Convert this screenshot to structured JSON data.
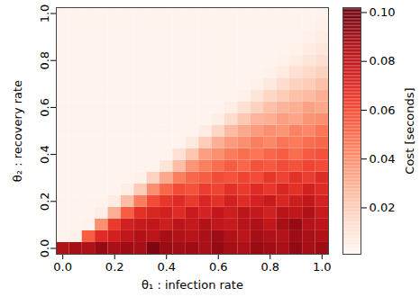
{
  "chart_data": {
    "type": "heatmap",
    "x_label": "θ₁ : infection rate",
    "y_label": "θ₂ : recovery rate",
    "x": [
      0,
      0.05,
      0.1,
      0.15,
      0.2,
      0.25,
      0.3,
      0.35,
      0.4,
      0.45,
      0.5,
      0.55,
      0.6,
      0.65,
      0.7,
      0.75,
      0.8,
      0.85,
      0.9,
      0.95,
      1.0
    ],
    "y": [
      0,
      0.05,
      0.1,
      0.15,
      0.2,
      0.25,
      0.3,
      0.35,
      0.4,
      0.45,
      0.5,
      0.55,
      0.6,
      0.65,
      0.7,
      0.75,
      0.8,
      0.85,
      0.9,
      0.95,
      1.0
    ],
    "values": [
      [
        0.085,
        0.088,
        0.086,
        0.092,
        0.087,
        0.09,
        0.088,
        0.097,
        0.091,
        0.089,
        0.09,
        0.087,
        0.092,
        0.088,
        0.086,
        0.091,
        0.089,
        0.087,
        0.093,
        0.088,
        0.09
      ],
      [
        0.002,
        0.004,
        0.055,
        0.07,
        0.075,
        0.08,
        0.085,
        0.082,
        0.088,
        0.085,
        0.083,
        0.087,
        0.09,
        0.085,
        0.082,
        0.088,
        0.086,
        0.084,
        0.09,
        0.087,
        0.085
      ],
      [
        0.002,
        0.002,
        0.003,
        0.04,
        0.065,
        0.075,
        0.078,
        0.08,
        0.076,
        0.082,
        0.079,
        0.085,
        0.08,
        0.078,
        0.083,
        0.086,
        0.08,
        0.088,
        0.092,
        0.084,
        0.082
      ],
      [
        0.002,
        0.002,
        0.002,
        0.005,
        0.03,
        0.055,
        0.068,
        0.072,
        0.075,
        0.07,
        0.078,
        0.074,
        0.08,
        0.076,
        0.082,
        0.079,
        0.075,
        0.083,
        0.08,
        0.086,
        0.078
      ],
      [
        0.002,
        0.002,
        0.002,
        0.002,
        0.006,
        0.025,
        0.045,
        0.06,
        0.066,
        0.07,
        0.065,
        0.072,
        0.068,
        0.075,
        0.07,
        0.074,
        0.078,
        0.072,
        0.076,
        0.08,
        0.074
      ],
      [
        0.002,
        0.002,
        0.002,
        0.002,
        0.002,
        0.005,
        0.02,
        0.04,
        0.052,
        0.06,
        0.058,
        0.064,
        0.062,
        0.068,
        0.065,
        0.07,
        0.066,
        0.072,
        0.068,
        0.075,
        0.07
      ],
      [
        0.002,
        0.002,
        0.002,
        0.002,
        0.002,
        0.002,
        0.004,
        0.018,
        0.032,
        0.045,
        0.052,
        0.055,
        0.06,
        0.058,
        0.062,
        0.06,
        0.066,
        0.063,
        0.068,
        0.064,
        0.07
      ],
      [
        0.002,
        0.002,
        0.002,
        0.002,
        0.002,
        0.002,
        0.002,
        0.002,
        0.01,
        0.025,
        0.038,
        0.045,
        0.05,
        0.055,
        0.052,
        0.058,
        0.056,
        0.06,
        0.058,
        0.062,
        0.06
      ],
      [
        0.002,
        0.002,
        0.002,
        0.002,
        0.002,
        0.002,
        0.002,
        0.002,
        0.002,
        0.012,
        0.022,
        0.035,
        0.04,
        0.046,
        0.05,
        0.048,
        0.052,
        0.055,
        0.05,
        0.056,
        0.058
      ],
      [
        0.002,
        0.002,
        0.002,
        0.002,
        0.002,
        0.002,
        0.002,
        0.002,
        0.002,
        0.002,
        0.008,
        0.02,
        0.03,
        0.036,
        0.04,
        0.045,
        0.042,
        0.048,
        0.046,
        0.05,
        0.052
      ],
      [
        0.002,
        0.002,
        0.002,
        0.002,
        0.002,
        0.002,
        0.002,
        0.002,
        0.002,
        0.002,
        0.002,
        0.006,
        0.016,
        0.026,
        0.032,
        0.036,
        0.04,
        0.038,
        0.044,
        0.042,
        0.048
      ],
      [
        0.002,
        0.002,
        0.002,
        0.002,
        0.002,
        0.002,
        0.002,
        0.002,
        0.002,
        0.002,
        0.002,
        0.002,
        0.005,
        0.014,
        0.022,
        0.028,
        0.03,
        0.035,
        0.033,
        0.038,
        0.04
      ],
      [
        0.002,
        0.002,
        0.002,
        0.002,
        0.002,
        0.002,
        0.002,
        0.002,
        0.002,
        0.002,
        0.002,
        0.002,
        0.002,
        0.005,
        0.012,
        0.018,
        0.024,
        0.028,
        0.03,
        0.034,
        0.032
      ],
      [
        0.002,
        0.002,
        0.002,
        0.002,
        0.002,
        0.002,
        0.002,
        0.002,
        0.002,
        0.002,
        0.002,
        0.002,
        0.002,
        0.002,
        0.004,
        0.01,
        0.016,
        0.02,
        0.024,
        0.026,
        0.03
      ],
      [
        0.002,
        0.002,
        0.002,
        0.002,
        0.002,
        0.002,
        0.002,
        0.002,
        0.002,
        0.002,
        0.002,
        0.002,
        0.002,
        0.002,
        0.002,
        0.004,
        0.008,
        0.014,
        0.018,
        0.02,
        0.024
      ],
      [
        0.002,
        0.002,
        0.002,
        0.002,
        0.002,
        0.002,
        0.002,
        0.002,
        0.002,
        0.002,
        0.002,
        0.002,
        0.002,
        0.002,
        0.002,
        0.002,
        0.003,
        0.007,
        0.012,
        0.015,
        0.018
      ],
      [
        0.002,
        0.002,
        0.002,
        0.002,
        0.002,
        0.002,
        0.002,
        0.002,
        0.002,
        0.002,
        0.002,
        0.002,
        0.002,
        0.002,
        0.002,
        0.002,
        0.002,
        0.003,
        0.006,
        0.01,
        0.013
      ],
      [
        0.002,
        0.002,
        0.002,
        0.002,
        0.002,
        0.002,
        0.002,
        0.002,
        0.002,
        0.002,
        0.002,
        0.002,
        0.002,
        0.002,
        0.002,
        0.002,
        0.002,
        0.002,
        0.003,
        0.006,
        0.009
      ],
      [
        0.002,
        0.002,
        0.002,
        0.002,
        0.002,
        0.002,
        0.002,
        0.002,
        0.002,
        0.002,
        0.002,
        0.002,
        0.002,
        0.002,
        0.002,
        0.002,
        0.002,
        0.002,
        0.002,
        0.004,
        0.006
      ],
      [
        0.002,
        0.002,
        0.002,
        0.002,
        0.002,
        0.002,
        0.002,
        0.002,
        0.002,
        0.002,
        0.002,
        0.002,
        0.002,
        0.002,
        0.002,
        0.002,
        0.002,
        0.002,
        0.002,
        0.002,
        0.004
      ],
      [
        0.002,
        0.002,
        0.002,
        0.002,
        0.002,
        0.002,
        0.002,
        0.002,
        0.002,
        0.002,
        0.002,
        0.002,
        0.002,
        0.002,
        0.002,
        0.002,
        0.002,
        0.002,
        0.002,
        0.002,
        0.002
      ]
    ],
    "xlim": [
      -0.025,
      1.025
    ],
    "ylim": [
      -0.025,
      1.025
    ],
    "xticks": [
      {
        "value": 0,
        "label": "0.0"
      },
      0.2,
      0.4,
      0.6,
      0.8,
      {
        "value": 1,
        "label": "1.0"
      }
    ],
    "yticks": [
      {
        "value": 0,
        "label": "0.0"
      },
      0.2,
      0.4,
      0.6,
      0.8,
      {
        "value": 1,
        "label": "1.0"
      }
    ],
    "color": "Reds",
    "colorbar": {
      "label": "Cost [seconds]",
      "range": [
        0.001,
        0.102
      ],
      "ticks": [
        0.02,
        0.04,
        0.06,
        0.08,
        {
          "value": 0.1,
          "label": "0.10"
        }
      ]
    }
  }
}
